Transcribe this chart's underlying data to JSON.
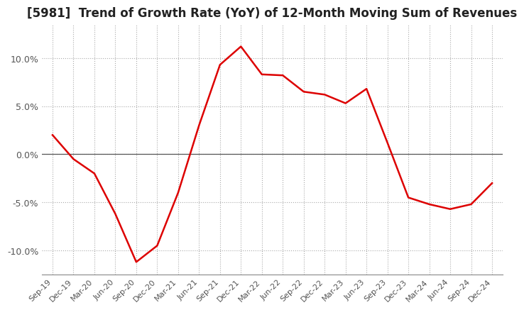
{
  "title": "[5981]  Trend of Growth Rate (YoY) of 12-Month Moving Sum of Revenues",
  "title_fontsize": 12,
  "line_color": "#dd0000",
  "background_color": "#ffffff",
  "grid_color": "#aaaaaa",
  "ylim": [
    -0.125,
    0.135
  ],
  "yticks": [
    -0.1,
    -0.05,
    0.0,
    0.05,
    0.1
  ],
  "ytick_labels": [
    "-10.0%",
    "-5.0%",
    "0.0%",
    "5.0%",
    "10.0%"
  ],
  "x_labels": [
    "Sep-19",
    "Dec-19",
    "Mar-20",
    "Jun-20",
    "Sep-20",
    "Dec-20",
    "Mar-21",
    "Jun-21",
    "Sep-21",
    "Dec-21",
    "Mar-22",
    "Jun-22",
    "Sep-22",
    "Dec-22",
    "Mar-23",
    "Jun-23",
    "Sep-23",
    "Dec-23",
    "Mar-24",
    "Jun-24",
    "Sep-24",
    "Dec-24"
  ],
  "values": [
    0.02,
    -0.005,
    -0.02,
    -0.062,
    -0.112,
    -0.095,
    -0.04,
    0.03,
    0.093,
    0.112,
    0.083,
    0.082,
    0.065,
    0.062,
    0.053,
    0.068,
    0.012,
    -0.045,
    -0.052,
    -0.057,
    -0.052,
    -0.03
  ]
}
